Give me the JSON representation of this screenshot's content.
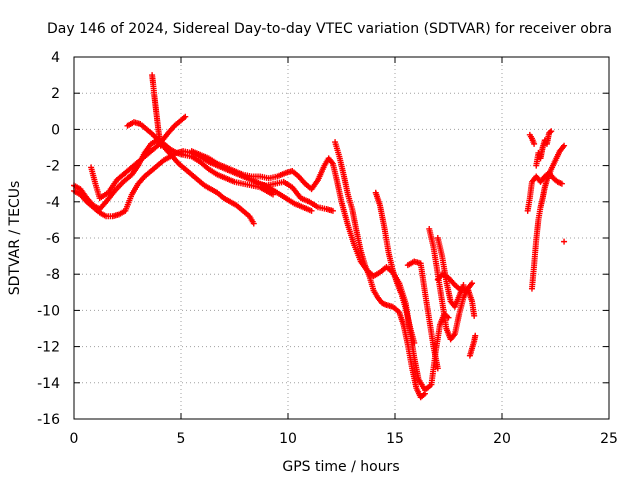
{
  "chart_data": {
    "type": "scatter",
    "title": "Day 146 of 2024, Sidereal Day-to-day VTEC variation (SDTVAR) for receiver obra",
    "xlabel": "GPS time / hours",
    "ylabel": "SDTVAR / TECUs",
    "xlim": [
      0,
      25
    ],
    "ylim": [
      -16,
      4
    ],
    "xticks": [
      "0",
      "5",
      "10",
      "15",
      "20",
      "25"
    ],
    "yticks": [
      "4",
      "2",
      "0",
      "-2",
      "-4",
      "-6",
      "-8",
      "-10",
      "-12",
      "-14",
      "-16"
    ],
    "grid": true,
    "marker": "+",
    "color": "#ff0000",
    "series": [
      {
        "points": [
          [
            0.0,
            -3.1
          ],
          [
            0.3,
            -3.3
          ],
          [
            0.6,
            -3.8
          ],
          [
            0.9,
            -4.2
          ],
          [
            1.2,
            -4.4
          ],
          [
            1.5,
            -4.0
          ],
          [
            1.9,
            -3.4
          ],
          [
            2.3,
            -2.9
          ],
          [
            2.7,
            -2.5
          ],
          [
            3.0,
            -2.0
          ],
          [
            3.3,
            -1.3
          ],
          [
            3.6,
            -0.8
          ],
          [
            3.9,
            -0.6
          ],
          [
            4.2,
            -0.8
          ],
          [
            4.5,
            -1.1
          ],
          [
            4.8,
            -1.3
          ],
          [
            5.1,
            -1.4
          ],
          [
            5.5,
            -1.5
          ],
          [
            5.9,
            -1.8
          ],
          [
            6.3,
            -2.2
          ],
          [
            6.7,
            -2.5
          ],
          [
            7.1,
            -2.7
          ],
          [
            7.5,
            -2.9
          ],
          [
            7.9,
            -3.0
          ],
          [
            8.3,
            -3.1
          ],
          [
            8.7,
            -3.2
          ],
          [
            9.0,
            -3.4
          ],
          [
            9.3,
            -3.6
          ]
        ]
      },
      {
        "points": [
          [
            0.0,
            -3.4
          ],
          [
            0.3,
            -3.6
          ],
          [
            0.6,
            -4.0
          ],
          [
            0.9,
            -4.3
          ],
          [
            1.2,
            -4.6
          ],
          [
            1.5,
            -4.8
          ],
          [
            1.8,
            -4.8
          ],
          [
            2.1,
            -4.7
          ],
          [
            2.4,
            -4.5
          ],
          [
            2.7,
            -3.6
          ],
          [
            3.0,
            -3.0
          ],
          [
            3.3,
            -2.6
          ],
          [
            3.6,
            -2.3
          ],
          [
            3.9,
            -2.0
          ],
          [
            4.2,
            -1.7
          ],
          [
            4.5,
            -1.5
          ],
          [
            4.8,
            -1.3
          ],
          [
            5.1,
            -1.2
          ],
          [
            5.5,
            -1.3
          ],
          [
            5.9,
            -1.5
          ],
          [
            6.3,
            -1.8
          ],
          [
            6.7,
            -2.0
          ],
          [
            7.1,
            -2.2
          ],
          [
            7.5,
            -2.4
          ],
          [
            7.9,
            -2.6
          ],
          [
            8.3,
            -2.8
          ],
          [
            8.7,
            -3.0
          ],
          [
            9.1,
            -3.2
          ],
          [
            9.5,
            -3.5
          ],
          [
            9.9,
            -3.8
          ],
          [
            10.3,
            -4.1
          ],
          [
            10.7,
            -4.3
          ],
          [
            11.1,
            -4.5
          ]
        ]
      },
      {
        "points": [
          [
            0.8,
            -2.1
          ],
          [
            1.0,
            -3.0
          ],
          [
            1.2,
            -3.8
          ],
          [
            1.6,
            -3.5
          ],
          [
            2.0,
            -2.8
          ],
          [
            2.4,
            -2.4
          ],
          [
            2.8,
            -2.0
          ],
          [
            3.2,
            -1.6
          ],
          [
            3.6,
            -1.2
          ],
          [
            4.0,
            -0.8
          ],
          [
            4.4,
            -0.2
          ],
          [
            4.7,
            0.2
          ],
          [
            5.0,
            0.5
          ],
          [
            5.2,
            0.7
          ]
        ]
      },
      {
        "points": [
          [
            2.5,
            0.2
          ],
          [
            2.8,
            0.4
          ],
          [
            3.1,
            0.3
          ],
          [
            3.4,
            0.0
          ],
          [
            3.7,
            -0.3
          ],
          [
            4.0,
            -0.7
          ],
          [
            4.3,
            -1.1
          ],
          [
            4.6,
            -1.5
          ],
          [
            4.9,
            -1.9
          ],
          [
            5.2,
            -2.2
          ],
          [
            5.5,
            -2.5
          ],
          [
            5.8,
            -2.8
          ],
          [
            6.1,
            -3.1
          ],
          [
            6.4,
            -3.3
          ],
          [
            6.7,
            -3.5
          ],
          [
            7.0,
            -3.8
          ],
          [
            7.3,
            -4.0
          ],
          [
            7.6,
            -4.2
          ],
          [
            7.9,
            -4.5
          ],
          [
            8.2,
            -4.8
          ],
          [
            8.4,
            -5.2
          ]
        ]
      },
      {
        "points": [
          [
            3.65,
            3.0
          ],
          [
            3.7,
            2.5
          ],
          [
            3.75,
            1.9
          ],
          [
            3.8,
            1.4
          ],
          [
            3.85,
            0.9
          ],
          [
            3.9,
            0.4
          ],
          [
            3.95,
            -0.1
          ],
          [
            4.0,
            -0.5
          ],
          [
            4.05,
            -0.9
          ]
        ]
      },
      {
        "points": [
          [
            5.5,
            -1.2
          ],
          [
            5.9,
            -1.4
          ],
          [
            6.3,
            -1.6
          ],
          [
            6.7,
            -1.9
          ],
          [
            7.1,
            -2.1
          ],
          [
            7.5,
            -2.3
          ],
          [
            7.9,
            -2.5
          ],
          [
            8.3,
            -2.6
          ],
          [
            8.7,
            -2.6
          ],
          [
            9.1,
            -2.7
          ],
          [
            9.5,
            -2.6
          ],
          [
            9.9,
            -2.4
          ],
          [
            10.2,
            -2.3
          ],
          [
            10.5,
            -2.6
          ],
          [
            10.8,
            -3.0
          ],
          [
            11.1,
            -3.3
          ],
          [
            11.4,
            -2.8
          ],
          [
            11.7,
            -2.0
          ],
          [
            11.9,
            -1.6
          ],
          [
            12.1,
            -1.9
          ],
          [
            12.3,
            -2.9
          ],
          [
            12.5,
            -4.0
          ],
          [
            12.8,
            -5.3
          ],
          [
            13.1,
            -6.4
          ],
          [
            13.4,
            -7.3
          ],
          [
            13.7,
            -7.8
          ],
          [
            14.0,
            -8.1
          ],
          [
            14.3,
            -7.9
          ],
          [
            14.6,
            -7.6
          ],
          [
            14.9,
            -7.9
          ],
          [
            15.2,
            -8.5
          ],
          [
            15.5,
            -9.6
          ],
          [
            15.7,
            -11.1
          ],
          [
            15.9,
            -12.6
          ],
          [
            16.1,
            -13.8
          ],
          [
            16.4,
            -14.4
          ],
          [
            16.7,
            -14.1
          ],
          [
            16.9,
            -12.3
          ],
          [
            17.1,
            -10.8
          ],
          [
            17.3,
            -10.2
          ],
          [
            17.5,
            -10.4
          ]
        ]
      },
      {
        "points": [
          [
            8.6,
            -3.0
          ],
          [
            9.0,
            -3.1
          ],
          [
            9.4,
            -3.0
          ],
          [
            9.8,
            -2.9
          ],
          [
            10.2,
            -3.2
          ],
          [
            10.6,
            -3.8
          ],
          [
            11.0,
            -4.0
          ],
          [
            11.4,
            -4.3
          ],
          [
            11.8,
            -4.4
          ],
          [
            12.1,
            -4.5
          ]
        ]
      },
      {
        "points": [
          [
            12.2,
            -0.7
          ],
          [
            12.4,
            -1.5
          ],
          [
            12.6,
            -2.5
          ],
          [
            12.8,
            -3.6
          ],
          [
            13.0,
            -4.4
          ],
          [
            13.2,
            -5.6
          ],
          [
            13.4,
            -6.7
          ],
          [
            13.6,
            -7.5
          ],
          [
            13.8,
            -8.1
          ],
          [
            14.0,
            -8.9
          ],
          [
            14.2,
            -9.3
          ],
          [
            14.4,
            -9.6
          ],
          [
            14.6,
            -9.7
          ],
          [
            14.9,
            -9.8
          ],
          [
            15.2,
            -10.1
          ],
          [
            15.4,
            -10.8
          ],
          [
            15.6,
            -11.9
          ],
          [
            15.8,
            -13.2
          ],
          [
            16.0,
            -14.3
          ],
          [
            16.2,
            -14.8
          ],
          [
            16.4,
            -14.6
          ]
        ]
      },
      {
        "points": [
          [
            14.1,
            -3.5
          ],
          [
            14.3,
            -4.2
          ],
          [
            14.5,
            -5.4
          ],
          [
            14.7,
            -6.8
          ],
          [
            14.9,
            -7.8
          ],
          [
            15.1,
            -8.5
          ],
          [
            15.3,
            -9.1
          ],
          [
            15.5,
            -9.9
          ],
          [
            15.7,
            -10.9
          ],
          [
            15.9,
            -11.8
          ]
        ]
      },
      {
        "points": [
          [
            15.6,
            -7.5
          ],
          [
            15.9,
            -7.3
          ],
          [
            16.2,
            -7.4
          ],
          [
            16.4,
            -9.0
          ],
          [
            16.6,
            -10.5
          ],
          [
            16.8,
            -12.0
          ],
          [
            17.0,
            -13.2
          ]
        ]
      },
      {
        "points": [
          [
            16.6,
            -5.5
          ],
          [
            16.8,
            -6.5
          ],
          [
            17.0,
            -8.0
          ],
          [
            17.2,
            -9.5
          ],
          [
            17.4,
            -11.0
          ],
          [
            17.6,
            -11.6
          ],
          [
            17.8,
            -11.3
          ],
          [
            18.0,
            -10.2
          ],
          [
            18.2,
            -9.3
          ],
          [
            18.4,
            -8.8
          ],
          [
            18.6,
            -8.5
          ]
        ]
      },
      {
        "points": [
          [
            17.0,
            -6.0
          ],
          [
            17.2,
            -7.0
          ],
          [
            17.4,
            -8.4
          ],
          [
            17.6,
            -9.5
          ],
          [
            17.8,
            -9.8
          ],
          [
            18.0,
            -9.2
          ],
          [
            18.2,
            -8.6
          ]
        ]
      },
      {
        "points": [
          [
            17.0,
            -8.3
          ],
          [
            17.2,
            -8.0
          ],
          [
            17.5,
            -8.2
          ],
          [
            17.8,
            -8.6
          ],
          [
            18.1,
            -8.9
          ],
          [
            18.4,
            -8.8
          ],
          [
            18.6,
            -9.5
          ],
          [
            18.7,
            -10.3
          ]
        ]
      },
      {
        "points": [
          [
            18.5,
            -12.5
          ],
          [
            18.6,
            -12.1
          ],
          [
            18.7,
            -11.7
          ],
          [
            18.75,
            -11.4
          ]
        ]
      },
      {
        "points": [
          [
            21.2,
            -4.5
          ],
          [
            21.3,
            -3.8
          ],
          [
            21.4,
            -2.9
          ],
          [
            21.6,
            -2.6
          ],
          [
            21.8,
            -2.9
          ],
          [
            22.0,
            -2.6
          ],
          [
            22.2,
            -2.4
          ],
          [
            22.4,
            -2.7
          ],
          [
            22.6,
            -2.9
          ],
          [
            22.8,
            -3.0
          ]
        ]
      },
      {
        "points": [
          [
            21.4,
            -8.8
          ],
          [
            21.5,
            -7.5
          ],
          [
            21.6,
            -6.1
          ],
          [
            21.7,
            -5.0
          ],
          [
            21.8,
            -4.3
          ],
          [
            21.9,
            -3.8
          ],
          [
            22.0,
            -3.2
          ],
          [
            22.1,
            -2.8
          ],
          [
            22.3,
            -2.2
          ],
          [
            22.5,
            -1.7
          ],
          [
            22.7,
            -1.2
          ],
          [
            22.9,
            -0.9
          ]
        ]
      },
      {
        "points": [
          [
            21.6,
            -2.0
          ],
          [
            21.7,
            -1.3
          ],
          [
            21.8,
            -1.6
          ],
          [
            21.9,
            -1.0
          ],
          [
            22.0,
            -0.6
          ],
          [
            22.1,
            -0.8
          ],
          [
            22.2,
            -0.2
          ],
          [
            22.3,
            -0.1
          ]
        ]
      },
      {
        "points": [
          [
            21.3,
            -0.3
          ],
          [
            21.4,
            -0.5
          ],
          [
            21.5,
            -0.8
          ]
        ]
      },
      {
        "points": [
          [
            22.9,
            -6.2
          ]
        ]
      }
    ]
  }
}
